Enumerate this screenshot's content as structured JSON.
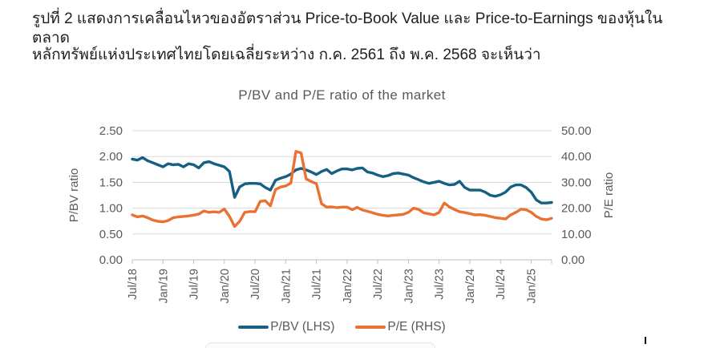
{
  "caption": {
    "line1": "รูปที่ 2 แสดงการเคลื่อนไหวของอัตราส่วน Price-to-Book Value และ Price-to-Earnings ของหุ้นในตลาด",
    "line2": "หลักทรัพย์แห่งประเทศไทยโดยเฉลี่ยระหว่าง ก.ค. 2561 ถึง พ.ค. 2568 จะเห็นว่า"
  },
  "chart_data": {
    "type": "line",
    "title": "P/BV and P/E ratio of the market",
    "grid": true,
    "legend_position": "bottom",
    "frequency": "monthly",
    "x_start": "Jul/18",
    "x_end": "May/25",
    "x_tick_every": 6,
    "x_tick_labels": [
      "Jul/18",
      "Jan/19",
      "Jul/19",
      "Jan/20",
      "Jul/20",
      "Jan/21",
      "Jul/21",
      "Jan/22",
      "Jul/22",
      "Jan/23",
      "Jul/23",
      "Jan/24",
      "Jul/24",
      "Jan/25"
    ],
    "left_axis": {
      "label": "P/BV ratio",
      "min": 0,
      "max": 2.5,
      "ticks": [
        "0.00",
        "0.50",
        "1.00",
        "1.50",
        "2.00",
        "2.50"
      ]
    },
    "right_axis": {
      "label": "P/E ratio",
      "min": 0,
      "max": 50.0,
      "ticks": [
        "0.00",
        "10.00",
        "20.00",
        "30.00",
        "40.00",
        "50.00"
      ]
    },
    "colors": {
      "pbv": "#156082",
      "pe": "#E97132",
      "gridline": "#D9D9D9",
      "axis": "#BFBFBF",
      "text": "#595959"
    },
    "series": [
      {
        "name": "P/BV (LHS)",
        "axis": "left",
        "color": "#156082",
        "values": [
          1.95,
          1.93,
          1.98,
          1.92,
          1.88,
          1.84,
          1.8,
          1.86,
          1.84,
          1.85,
          1.8,
          1.86,
          1.84,
          1.78,
          1.88,
          1.9,
          1.86,
          1.83,
          1.8,
          1.71,
          1.21,
          1.41,
          1.47,
          1.48,
          1.48,
          1.47,
          1.4,
          1.35,
          1.54,
          1.58,
          1.61,
          1.66,
          1.74,
          1.77,
          1.74,
          1.7,
          1.65,
          1.71,
          1.75,
          1.67,
          1.72,
          1.76,
          1.76,
          1.74,
          1.77,
          1.78,
          1.7,
          1.68,
          1.64,
          1.61,
          1.63,
          1.67,
          1.68,
          1.66,
          1.64,
          1.59,
          1.55,
          1.51,
          1.48,
          1.5,
          1.52,
          1.48,
          1.45,
          1.46,
          1.52,
          1.4,
          1.35,
          1.35,
          1.35,
          1.31,
          1.25,
          1.23,
          1.26,
          1.31,
          1.41,
          1.45,
          1.45,
          1.4,
          1.31,
          1.16,
          1.1,
          1.1,
          1.11
        ]
      },
      {
        "name": "P/E (RHS)",
        "axis": "right",
        "color": "#E97132",
        "values": [
          17.4,
          16.6,
          17.0,
          16.3,
          15.4,
          14.9,
          14.7,
          15.2,
          16.3,
          16.6,
          16.8,
          17.0,
          17.3,
          17.7,
          18.9,
          18.4,
          18.6,
          18.4,
          19.7,
          16.8,
          12.9,
          14.9,
          18.4,
          18.7,
          18.6,
          22.6,
          22.9,
          20.9,
          27.2,
          28.2,
          28.6,
          29.7,
          42.0,
          41.4,
          31.3,
          30.3,
          29.5,
          21.7,
          20.4,
          20.5,
          20.2,
          20.4,
          20.4,
          19.4,
          20.3,
          19.3,
          18.8,
          18.2,
          17.6,
          17.2,
          17.0,
          17.2,
          17.4,
          17.6,
          18.4,
          20.0,
          19.5,
          18.2,
          17.8,
          17.4,
          18.4,
          22.0,
          20.5,
          19.5,
          18.6,
          18.3,
          17.9,
          17.4,
          17.5,
          17.2,
          16.8,
          16.3,
          16.1,
          15.8,
          17.4,
          18.4,
          19.6,
          19.4,
          18.4,
          16.8,
          15.8,
          15.5,
          16.1
        ]
      }
    ]
  }
}
